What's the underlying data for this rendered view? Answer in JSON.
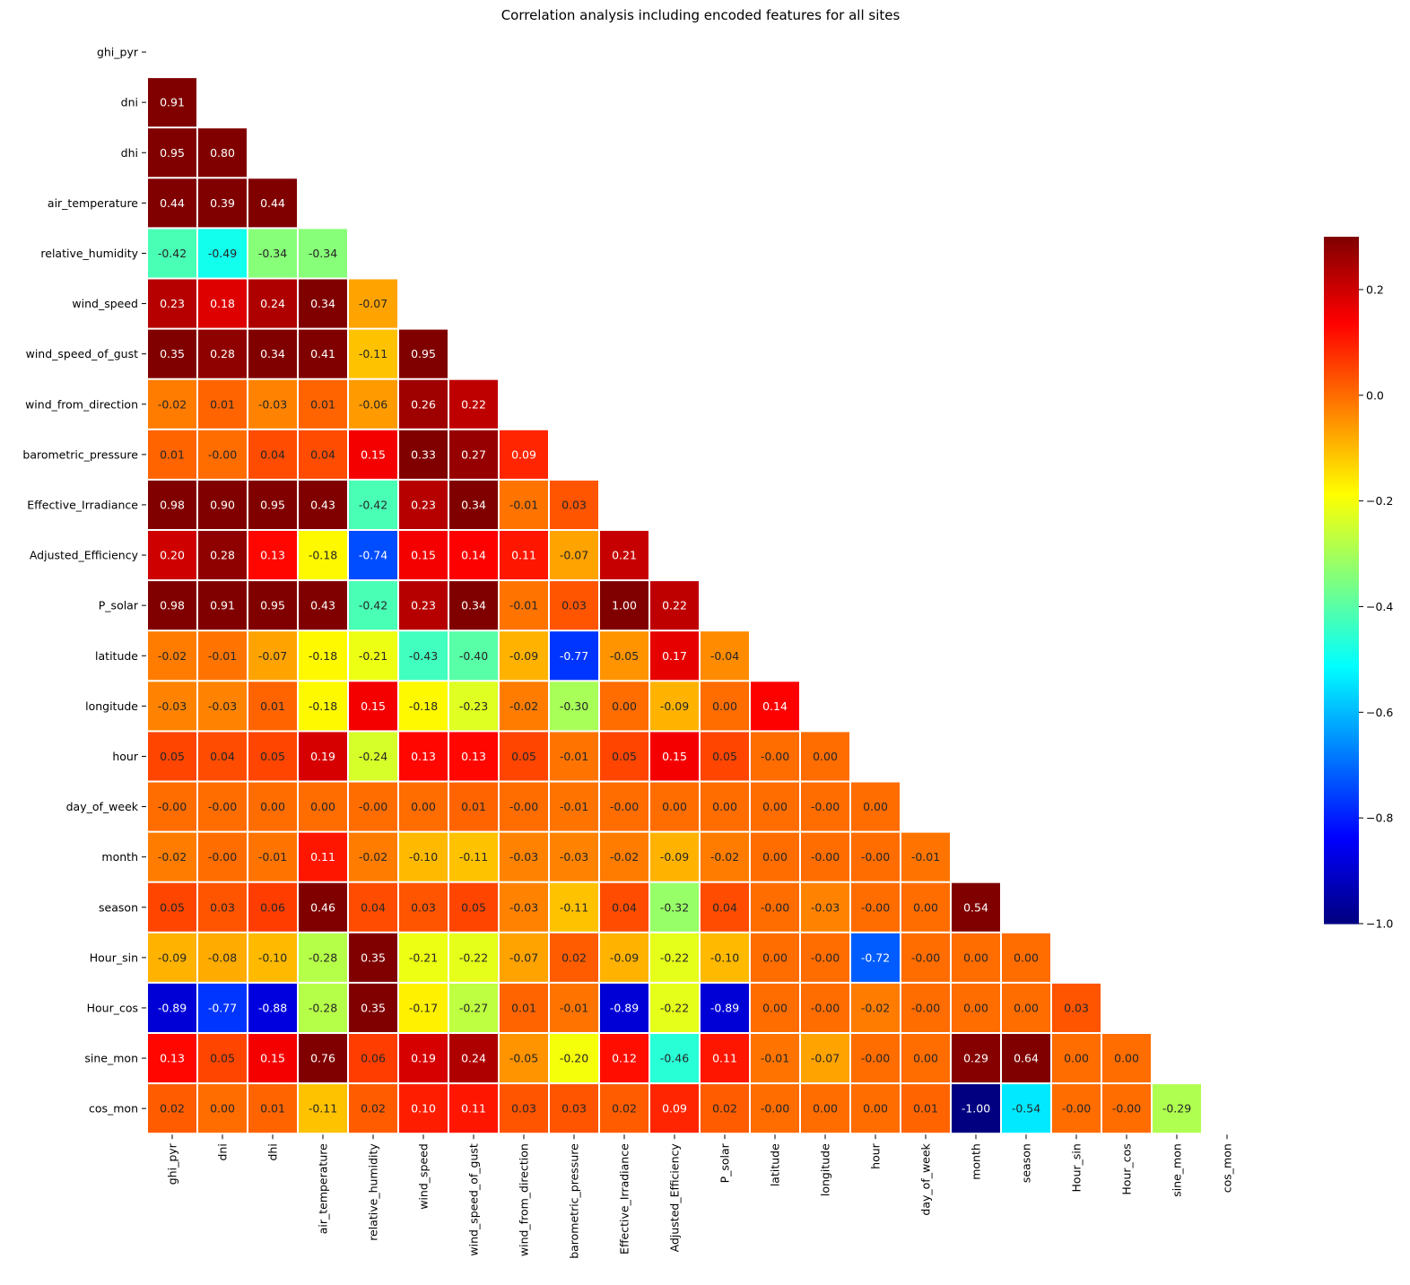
{
  "chart_data": {
    "type": "heatmap",
    "title": "Correlation analysis including encoded features for all sites",
    "row_labels": [
      "ghi_pyr",
      "dni",
      "dhi",
      "air_temperature",
      "relative_humidity",
      "wind_speed",
      "wind_speed_of_gust",
      "wind_from_direction",
      "barometric_pressure",
      "Effective_Irradiance",
      "Adjusted_Efficiency",
      "P_solar",
      "latitude",
      "longitude",
      "hour",
      "day_of_week",
      "month",
      "season",
      "Hour_sin",
      "Hour_cos",
      "sine_mon",
      "cos_mon"
    ],
    "col_labels": [
      "ghi_pyr",
      "dni",
      "dhi",
      "air_temperature",
      "relative_humidity",
      "wind_speed",
      "wind_speed_of_gust",
      "wind_from_direction",
      "barometric_pressure",
      "Effective_Irradiance",
      "Adjusted_Efficiency",
      "P_solar",
      "latitude",
      "longitude",
      "hour",
      "day_of_week",
      "month",
      "season",
      "Hour_sin",
      "Hour_cos",
      "sine_mon",
      "cos_mon"
    ],
    "values": [
      [],
      [
        "0.91"
      ],
      [
        "0.95",
        "0.80"
      ],
      [
        "0.44",
        "0.39",
        "0.44"
      ],
      [
        "-0.42",
        "-0.49",
        "-0.34",
        "-0.34"
      ],
      [
        "0.23",
        "0.18",
        "0.24",
        "0.34",
        "-0.07"
      ],
      [
        "0.35",
        "0.28",
        "0.34",
        "0.41",
        "-0.11",
        "0.95"
      ],
      [
        "-0.02",
        "0.01",
        "-0.03",
        "0.01",
        "-0.06",
        "0.26",
        "0.22"
      ],
      [
        "0.01",
        "-0.00",
        "0.04",
        "0.04",
        "0.15",
        "0.33",
        "0.27",
        "0.09"
      ],
      [
        "0.98",
        "0.90",
        "0.95",
        "0.43",
        "-0.42",
        "0.23",
        "0.34",
        "-0.01",
        "0.03"
      ],
      [
        "0.20",
        "0.28",
        "0.13",
        "-0.18",
        "-0.74",
        "0.15",
        "0.14",
        "0.11",
        "-0.07",
        "0.21"
      ],
      [
        "0.98",
        "0.91",
        "0.95",
        "0.43",
        "-0.42",
        "0.23",
        "0.34",
        "-0.01",
        "0.03",
        "1.00",
        "0.22"
      ],
      [
        "-0.02",
        "-0.01",
        "-0.07",
        "-0.18",
        "-0.21",
        "-0.43",
        "-0.40",
        "-0.09",
        "-0.77",
        "-0.05",
        "0.17",
        "-0.04"
      ],
      [
        "-0.03",
        "-0.03",
        "0.01",
        "-0.18",
        "0.15",
        "-0.18",
        "-0.23",
        "-0.02",
        "-0.30",
        "0.00",
        "-0.09",
        "0.00",
        "0.14"
      ],
      [
        "0.05",
        "0.04",
        "0.05",
        "0.19",
        "-0.24",
        "0.13",
        "0.13",
        "0.05",
        "-0.01",
        "0.05",
        "0.15",
        "0.05",
        "-0.00",
        "0.00"
      ],
      [
        "-0.00",
        "-0.00",
        "0.00",
        "0.00",
        "-0.00",
        "0.00",
        "0.01",
        "-0.00",
        "-0.01",
        "-0.00",
        "0.00",
        "0.00",
        "0.00",
        "-0.00",
        "0.00"
      ],
      [
        "-0.02",
        "-0.00",
        "-0.01",
        "0.11",
        "-0.02",
        "-0.10",
        "-0.11",
        "-0.03",
        "-0.03",
        "-0.02",
        "-0.09",
        "-0.02",
        "0.00",
        "-0.00",
        "-0.00",
        "-0.01"
      ],
      [
        "0.05",
        "0.03",
        "0.06",
        "0.46",
        "0.04",
        "0.03",
        "0.05",
        "-0.03",
        "-0.11",
        "0.04",
        "-0.32",
        "0.04",
        "-0.00",
        "-0.03",
        "-0.00",
        "0.00",
        "0.54"
      ],
      [
        "-0.09",
        "-0.08",
        "-0.10",
        "-0.28",
        "0.35",
        "-0.21",
        "-0.22",
        "-0.07",
        "0.02",
        "-0.09",
        "-0.22",
        "-0.10",
        "0.00",
        "-0.00",
        "-0.72",
        "-0.00",
        "0.00",
        "0.00"
      ],
      [
        "-0.89",
        "-0.77",
        "-0.88",
        "-0.28",
        "0.35",
        "-0.17",
        "-0.27",
        "0.01",
        "-0.01",
        "-0.89",
        "-0.22",
        "-0.89",
        "0.00",
        "-0.00",
        "-0.02",
        "-0.00",
        "0.00",
        "0.00",
        "0.03"
      ],
      [
        "0.13",
        "0.05",
        "0.15",
        "0.76",
        "0.06",
        "0.19",
        "0.24",
        "-0.05",
        "-0.20",
        "0.12",
        "-0.46",
        "0.11",
        "-0.01",
        "-0.07",
        "-0.00",
        "0.00",
        "0.29",
        "0.64",
        "0.00",
        "0.00"
      ],
      [
        "0.02",
        "0.00",
        "0.01",
        "-0.11",
        "0.02",
        "0.10",
        "0.11",
        "0.03",
        "0.03",
        "0.02",
        "0.09",
        "0.02",
        "-0.00",
        "0.00",
        "0.00",
        "0.01",
        "-1.00",
        "-0.54",
        "-0.00",
        "-0.00",
        "-0.29"
      ]
    ],
    "colormap": "jet",
    "vmin": -1.0,
    "vmax": 0.3,
    "colorbar_ticks": [
      {
        "value": 0.2,
        "label": "0.2"
      },
      {
        "value": 0.0,
        "label": "0.0"
      },
      {
        "value": -0.2,
        "label": "−0.2"
      },
      {
        "value": -0.4,
        "label": "−0.4"
      },
      {
        "value": -0.6,
        "label": "−0.6"
      },
      {
        "value": -0.8,
        "label": "−0.8"
      },
      {
        "value": -1.0,
        "label": "−1.0"
      }
    ],
    "mask": "upper triangle including diagonal",
    "legend": "colorbar right"
  }
}
